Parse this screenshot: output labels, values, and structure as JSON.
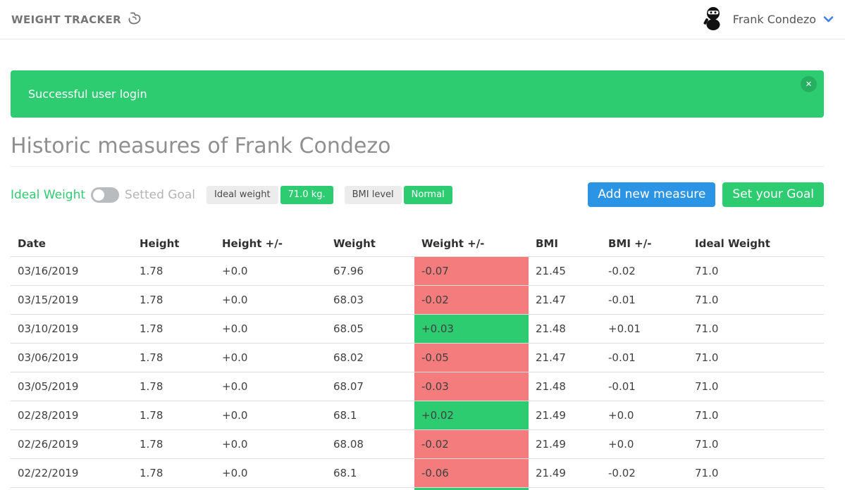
{
  "header": {
    "brand": "WEIGHT TRACKER",
    "user_name": "Frank Condezo"
  },
  "alert": {
    "message": "Successful user login",
    "close_glyph": "✕"
  },
  "page_title": "Historic measures of Frank Condezo",
  "controls": {
    "toggle_on_label": "Ideal Weight",
    "toggle_off_label": "Setted Goal",
    "toggle_state": "off",
    "ideal_weight_badge": {
      "label": "Ideal weight",
      "value": "71.0 kg."
    },
    "bmi_badge": {
      "label": "BMI level",
      "value": "Normal"
    },
    "add_button_label": "Add new measure",
    "goal_button_label": "Set your Goal"
  },
  "colors": {
    "accent_green": "#2ecc71",
    "accent_blue": "#2b94e4",
    "delta_up_bg": "#2ecc71",
    "delta_down_bg": "#f47c7c"
  },
  "icons": {
    "brand_icon": "bicep-icon",
    "avatar_icon": "ninja-icon",
    "user_chevron": "chevron-down-icon",
    "alert_close": "close-icon"
  },
  "table": {
    "columns": [
      "Date",
      "Height",
      "Height +/-",
      "Weight",
      "Weight +/-",
      "BMI",
      "BMI +/-",
      "Ideal Weight"
    ],
    "rows": [
      {
        "date": "03/16/2019",
        "height": "1.78",
        "height_delta": "+0.0",
        "weight": "67.96",
        "weight_delta": "-0.07",
        "weight_delta_trend": "down",
        "bmi": "21.45",
        "bmi_delta": "-0.02",
        "ideal_weight": "71.0"
      },
      {
        "date": "03/15/2019",
        "height": "1.78",
        "height_delta": "+0.0",
        "weight": "68.03",
        "weight_delta": "-0.02",
        "weight_delta_trend": "down",
        "bmi": "21.47",
        "bmi_delta": "-0.01",
        "ideal_weight": "71.0"
      },
      {
        "date": "03/10/2019",
        "height": "1.78",
        "height_delta": "+0.0",
        "weight": "68.05",
        "weight_delta": "+0.03",
        "weight_delta_trend": "up",
        "bmi": "21.48",
        "bmi_delta": "+0.01",
        "ideal_weight": "71.0"
      },
      {
        "date": "03/06/2019",
        "height": "1.78",
        "height_delta": "+0.0",
        "weight": "68.02",
        "weight_delta": "-0.05",
        "weight_delta_trend": "down",
        "bmi": "21.47",
        "bmi_delta": "-0.01",
        "ideal_weight": "71.0"
      },
      {
        "date": "03/05/2019",
        "height": "1.78",
        "height_delta": "+0.0",
        "weight": "68.07",
        "weight_delta": "-0.03",
        "weight_delta_trend": "down",
        "bmi": "21.48",
        "bmi_delta": "-0.01",
        "ideal_weight": "71.0"
      },
      {
        "date": "02/28/2019",
        "height": "1.78",
        "height_delta": "+0.0",
        "weight": "68.1",
        "weight_delta": "+0.02",
        "weight_delta_trend": "up",
        "bmi": "21.49",
        "bmi_delta": "+0.0",
        "ideal_weight": "71.0"
      },
      {
        "date": "02/26/2019",
        "height": "1.78",
        "height_delta": "+0.0",
        "weight": "68.08",
        "weight_delta": "-0.02",
        "weight_delta_trend": "down",
        "bmi": "21.49",
        "bmi_delta": "+0.0",
        "ideal_weight": "71.0"
      },
      {
        "date": "02/22/2019",
        "height": "1.78",
        "height_delta": "+0.0",
        "weight": "68.1",
        "weight_delta": "-0.06",
        "weight_delta_trend": "down",
        "bmi": "21.49",
        "bmi_delta": "-0.02",
        "ideal_weight": "71.0"
      }
    ],
    "partial_row": {
      "weight_delta_trend": "up"
    }
  }
}
